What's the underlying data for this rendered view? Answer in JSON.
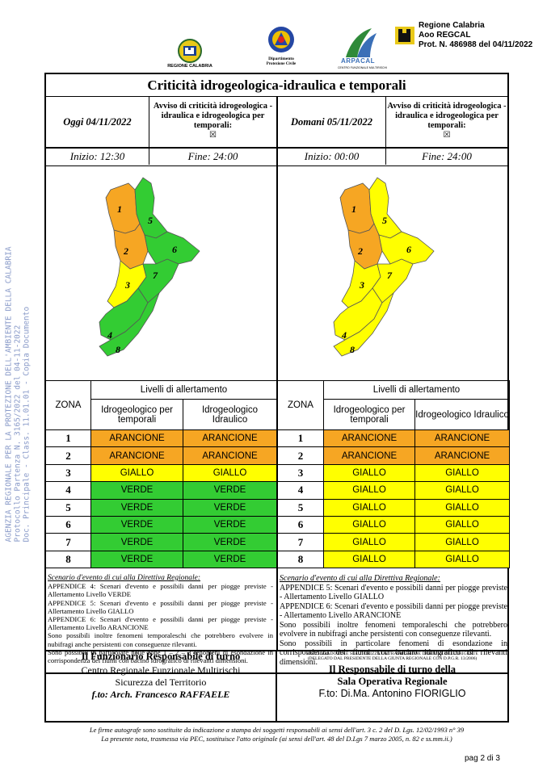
{
  "header": {
    "region_logo_label": "REGIONE CALABRIA",
    "dept_line1": "Dipartimento",
    "dept_line2": "Protezione Civile",
    "arpacal_label": "ARPACAL",
    "arpacal_sub": "CENTRO FUNZIONALE MULTIRISCHI",
    "stamp_line1": "Regione Calabria",
    "stamp_line2": "Aoo REGCAL",
    "stamp_line3": "Prot. N. 486988 del 04/11/2022"
  },
  "side_stamp": {
    "line1": "AGENZIA REGIONALE PER LA PROTEZIONE DELL'AMBIENTE DELLA CALABRIA",
    "line2": "Protocollo Partenza N. 3165/2022 del 04-11-2022",
    "line3": "Doc. Principale - Class. 11.01.01 - Copia Documento"
  },
  "title": "Criticità idrogeologica-idraulica e temporali",
  "today": {
    "label": "Oggi 04/11/2022",
    "notice": "Avviso di criticità idrogeologica - idraulica e idrogeologica per temporali:",
    "checkbox": "☒",
    "start": "Inizio: 12:30",
    "end": "Fine: 24:00"
  },
  "tomorrow": {
    "label": "Domani 05/11/2022",
    "notice": "Avviso di criticità idrogeologica - idraulica e idrogeologica per temporali:",
    "checkbox": "☒",
    "start": "Inizio: 00:00",
    "end": "Fine: 24:00"
  },
  "map_zone_labels": [
    "1",
    "2",
    "3",
    "4",
    "5",
    "6",
    "7",
    "8"
  ],
  "table_headers": {
    "levels": "Livelli di allertamento",
    "zone": "ZONA",
    "col1": "Idrogeologico per temporali",
    "col2": "Idrogeologico Idraulico"
  },
  "today_rows": [
    {
      "zone": "1",
      "temporali": "ARANCIONE",
      "idraulico": "ARANCIONE"
    },
    {
      "zone": "2",
      "temporali": "ARANCIONE",
      "idraulico": "ARANCIONE"
    },
    {
      "zone": "3",
      "temporali": "GIALLO",
      "idraulico": "GIALLO"
    },
    {
      "zone": "4",
      "temporali": "VERDE",
      "idraulico": "VERDE"
    },
    {
      "zone": "5",
      "temporali": "VERDE",
      "idraulico": "VERDE"
    },
    {
      "zone": "6",
      "temporali": "VERDE",
      "idraulico": "VERDE"
    },
    {
      "zone": "7",
      "temporali": "VERDE",
      "idraulico": "VERDE"
    },
    {
      "zone": "8",
      "temporali": "VERDE",
      "idraulico": "VERDE"
    }
  ],
  "tomorrow_rows": [
    {
      "zone": "1",
      "temporali": "ARANCIONE",
      "idraulico": "ARANCIONE"
    },
    {
      "zone": "2",
      "temporali": "ARANCIONE",
      "idraulico": "ARANCIONE"
    },
    {
      "zone": "3",
      "temporali": "GIALLO",
      "idraulico": "GIALLO"
    },
    {
      "zone": "4",
      "temporali": "GIALLO",
      "idraulico": "GIALLO"
    },
    {
      "zone": "5",
      "temporali": "GIALLO",
      "idraulico": "GIALLO"
    },
    {
      "zone": "6",
      "temporali": "GIALLO",
      "idraulico": "GIALLO"
    },
    {
      "zone": "7",
      "temporali": "GIALLO",
      "idraulico": "GIALLO"
    },
    {
      "zone": "8",
      "temporali": "GIALLO",
      "idraulico": "GIALLO"
    }
  ],
  "colors": {
    "ARANCIONE": "#f6a623",
    "GIALLO": "#ffff00",
    "VERDE": "#33cc33"
  },
  "scenarios_today": {
    "heading": "Scenario d'evento di cui alla Direttiva Regionale:",
    "p1": "APPENDICE 4: Scenari d'evento e possibili danni per piogge previste - Allertamento Livello VERDE",
    "p2": "APPENDICE 5: Scenari d'evento e possibili danni per piogge previste - Allertamento Livello GIALLO",
    "p3": "APPENDICE 6: Scenari d'evento e possibili danni per piogge previste - Allertamento Livello ARANCIONE",
    "p4": "Sono possibili inoltre fenomeni temporaleschi che potrebbero evolvere in nubifragi anche persistenti con conseguenze rilevanti.",
    "p5": "Sono possibili in particolare nelle zone 1 – 2 – 3 fenomeni di esondazione in corrispondenza dei fiumi con bacino idrografico di rilevanti dimensioni."
  },
  "scenarios_tomorrow": {
    "heading": "Scenario d'evento di cui alla Direttiva Regionale:",
    "p1": "APPENDICE 5: Scenari d'evento e possibili danni per piogge previste - Allertamento Livello GIALLO",
    "p2": "APPENDICE 6: Scenari d'evento e possibili danni per piogge previste - Allertamento Livello ARANCIONE",
    "p3": "Sono possibili inoltre fenomeni temporaleschi che potrebbero evolvere in nubifragi anche persistenti con conseguenze rilevanti.",
    "p4": "Sono possibili in particolare fenomeni di esondazione in corrispondenza dei fiumi con bacino idrografico di rilevanti dimensioni."
  },
  "signature_left": {
    "title": "Il Funzionario Responsabile di turno",
    "line1": "Centro Regionale Funzionale Multirischi",
    "line2": "Sicurezza del Territorio",
    "signed": "f.to: Arch. Francesco RAFFAELE"
  },
  "signature_right": {
    "visto1": "VISTO: SI ADOTTA E SI AUTORIZZA LA TRASMISSIONE D'ORDINE DEL DIRIGENTE",
    "visto2": "(DELEGATO DAL PRESIDENTE DELLA GIUNTA REGIONALE CON D.P.G.R. 13/2006)",
    "title1": "Il Responsabile di turno della",
    "title2": "Sala Operativa Regionale",
    "signed": "F.to: Di.Ma. Antonino FIORIGLIO"
  },
  "footer": {
    "line1": "Le firme autografe sono sostituite da indicazione a stampa dei soggetti responsabili ai sensi dell'art. 3 c. 2 del D. Lgs. 12/02/1993 n° 39",
    "line2": "La presente nota, trasmessa via PEC, sostituisce l'atto originale (ai sensi dell'art. 48 del D.Lgs 7 marzo 2005, n. 82 e ss.mm.ii.)",
    "page": "pag 2 di 3"
  }
}
